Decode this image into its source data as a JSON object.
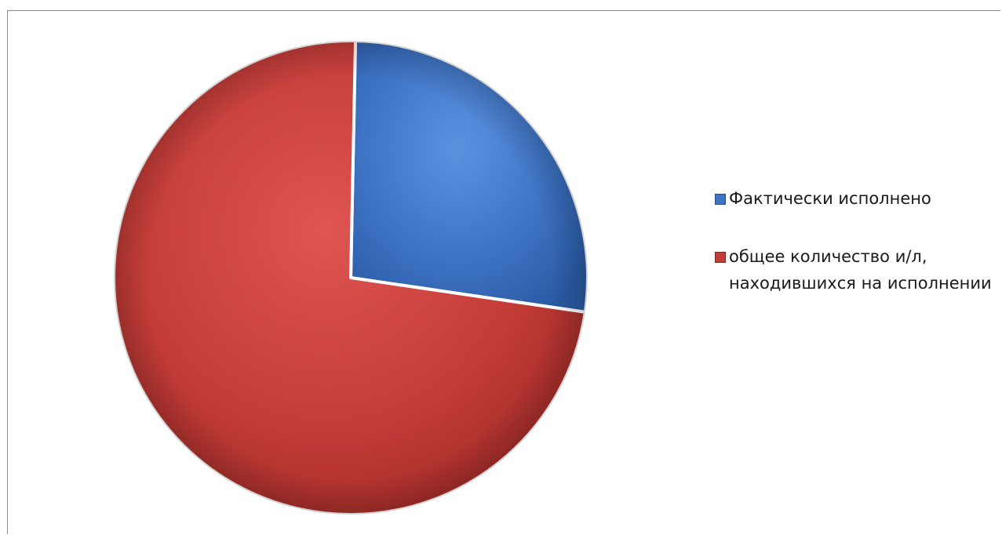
{
  "chart_data": {
    "type": "pie",
    "slices": [
      {
        "label": "Фактически исполнено",
        "value": 27,
        "color": "#3d73c9"
      },
      {
        "label": "общее количество и/л, находившихся на исполнении",
        "value": 73,
        "color": "#c23b37"
      }
    ],
    "value_unit": "share of total (approx., percent)",
    "legend_position": "right",
    "title": ""
  }
}
